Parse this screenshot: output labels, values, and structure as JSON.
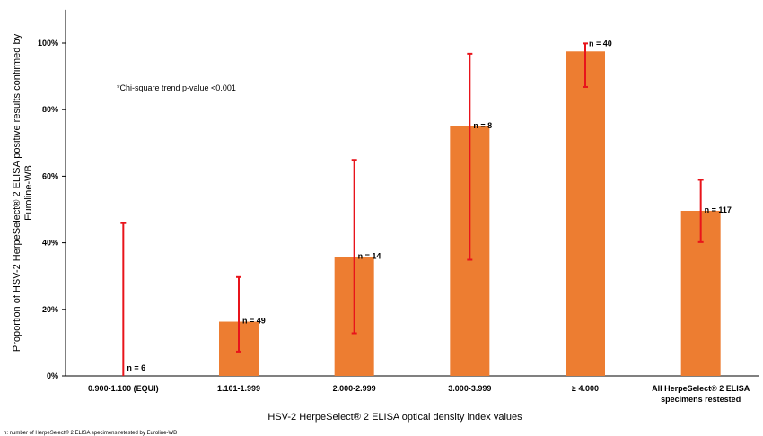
{
  "chart_data": {
    "type": "bar",
    "categories": [
      [
        "0.900-1.100 (EQUI)"
      ],
      [
        "1.101-1.999"
      ],
      [
        "2.000-2.999"
      ],
      [
        "3.000-3.999"
      ],
      [
        "≥ 4.000"
      ],
      [
        "All HerpeSelect® 2 ELISA",
        "specimens restested"
      ]
    ],
    "values": [
      0,
      16.3,
      35.7,
      75,
      97.5,
      49.6
    ],
    "error_low": [
      0,
      7.3,
      12.8,
      34.9,
      86.8,
      40.2
    ],
    "error_high": [
      45.9,
      29.7,
      64.9,
      96.8,
      99.9,
      58.9
    ],
    "n_labels": [
      "n = 6",
      "n = 49",
      "n = 14",
      "n = 8",
      "n = 40",
      "n = 117"
    ],
    "ylim": [
      0,
      110
    ],
    "yticks": [
      0,
      20,
      40,
      60,
      80,
      100
    ],
    "ytick_labels": [
      "0%",
      "20%",
      "40%",
      "60%",
      "80%",
      "100%"
    ],
    "xlabel": "HSV-2 HerpeSelect® 2 ELISA optical density index values",
    "ylabel_lines": [
      "Proportion of HSV-2 HerpeSelect® 2 ELISA positive results confirmed by",
      "Euroline-WB"
    ],
    "annotation": "*Chi-square trend p-value <0.001",
    "footnote": "n: number of HerpeSelect® 2 ELISA specimens retested by Euroline-WB",
    "colors": {
      "bar": "#ED7D31",
      "error": "#E8141B",
      "axis": "#000000"
    }
  }
}
